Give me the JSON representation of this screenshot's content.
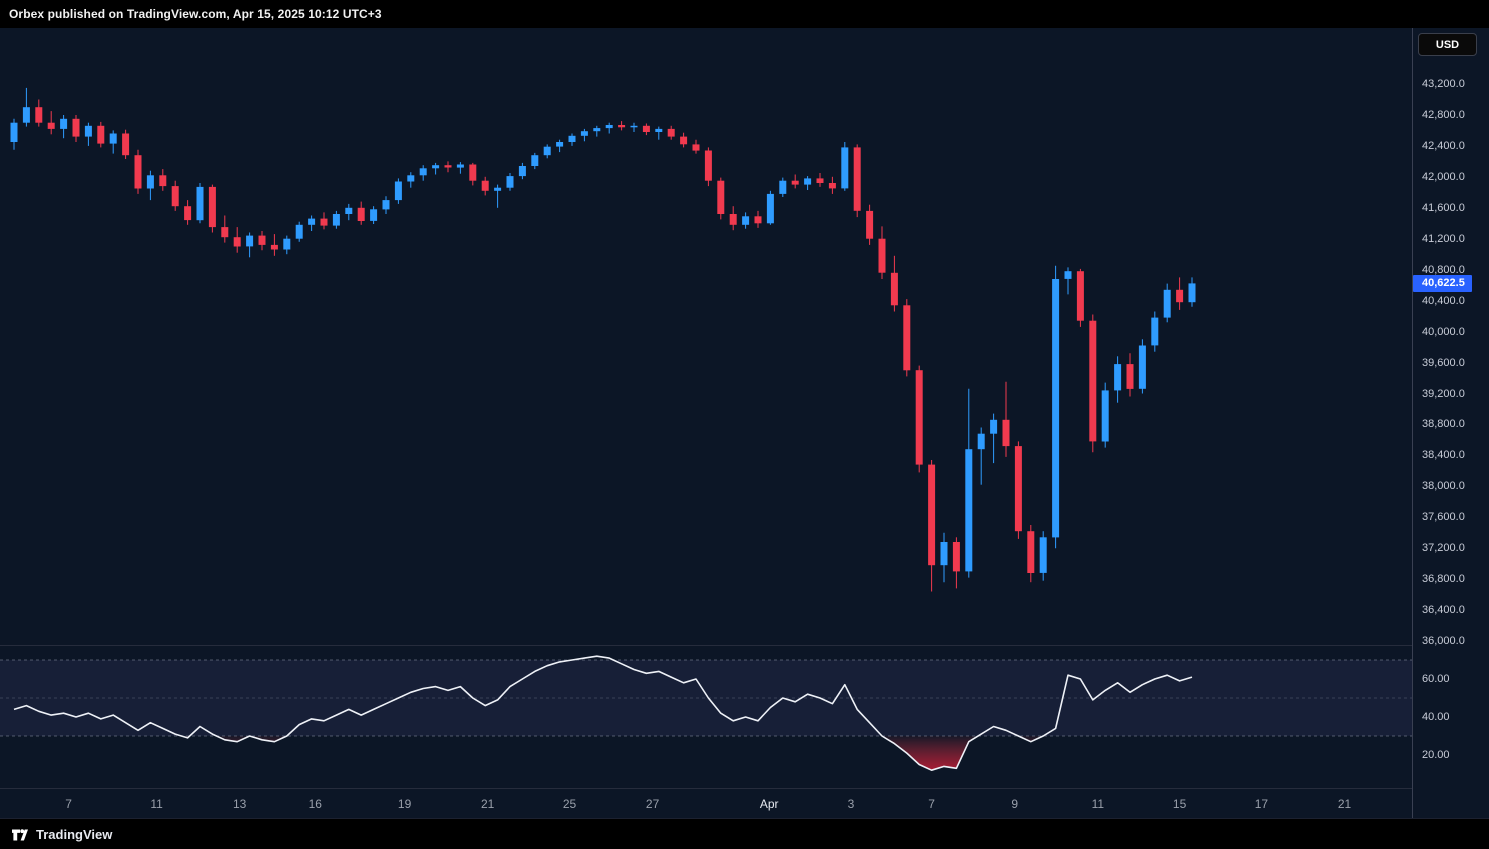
{
  "topbar": {
    "attribution": "Orbex published on TradingView.com, Apr 15, 2025 10:12 UTC+3"
  },
  "footer": {
    "brand": "TradingView"
  },
  "price_axis": {
    "currency_button": "USD",
    "last_price_label": "40,622.5",
    "last_price_value": 40622.5,
    "labels": [
      {
        "label": "43,200.0",
        "value": 43200
      },
      {
        "label": "42,800.0",
        "value": 42800
      },
      {
        "label": "42,400.0",
        "value": 42400
      },
      {
        "label": "42,000.0",
        "value": 42000
      },
      {
        "label": "41,600.0",
        "value": 41600
      },
      {
        "label": "41,200.0",
        "value": 41200
      },
      {
        "label": "40,800.0",
        "value": 40800
      },
      {
        "label": "40,400.0",
        "value": 40400
      },
      {
        "label": "40,000.0",
        "value": 40000
      },
      {
        "label": "39,600.0",
        "value": 39600
      },
      {
        "label": "39,200.0",
        "value": 39200
      },
      {
        "label": "38,800.0",
        "value": 38800
      },
      {
        "label": "38,400.0",
        "value": 38400
      },
      {
        "label": "38,000.0",
        "value": 38000
      },
      {
        "label": "37,600.0",
        "value": 37600
      },
      {
        "label": "37,200.0",
        "value": 37200
      },
      {
        "label": "36,800.0",
        "value": 36800
      },
      {
        "label": "36,400.0",
        "value": 36400
      },
      {
        "label": "36,000.0",
        "value": 36000
      }
    ]
  },
  "rsi_axis": {
    "labels": [
      {
        "label": "60.00",
        "value": 60
      },
      {
        "label": "40.00",
        "value": 40
      },
      {
        "label": "20.00",
        "value": 20
      }
    ]
  },
  "time_axis": {
    "labels": [
      {
        "label": "7",
        "i": 4.4
      },
      {
        "label": "11",
        "i": 11.5
      },
      {
        "label": "13",
        "i": 18.2
      },
      {
        "label": "16",
        "i": 24.3
      },
      {
        "label": "19",
        "i": 31.5
      },
      {
        "label": "21",
        "i": 38.2
      },
      {
        "label": "25",
        "i": 44.8
      },
      {
        "label": "27",
        "i": 51.5
      },
      {
        "label": "Apr",
        "i": 60.9,
        "major": true
      },
      {
        "label": "3",
        "i": 67.5
      },
      {
        "label": "7",
        "i": 74
      },
      {
        "label": "9",
        "i": 80.7
      },
      {
        "label": "11",
        "i": 87.4
      },
      {
        "label": "15",
        "i": 94
      },
      {
        "label": "17",
        "i": 100.6
      },
      {
        "label": "21",
        "i": 107.3
      }
    ]
  },
  "colors": {
    "background": "#0c1626",
    "candle_up": "#2f9cff",
    "candle_down": "#f13a4f",
    "rsi_line": "#eef1f7",
    "rsi_band_line": "#8b8fa3",
    "rsi_band_fill": "rgba(116,108,204,0.11)",
    "oversold_fill": "#c21834",
    "badge": "#2962ff",
    "axis_text": "#c9cdd8"
  },
  "chart_data": {
    "type": "candlestick",
    "currency": "USD",
    "last_price": 40622.5,
    "price_axis_ticks": [
      43200,
      42800,
      42400,
      42000,
      41600,
      41200,
      40800,
      40400,
      40000,
      39600,
      39200,
      38800,
      38400,
      38000,
      37600,
      37200,
      36800,
      36400,
      36000
    ],
    "ylim_price": [
      35950,
      43950
    ],
    "grid": false,
    "legend_position": "none",
    "ohlc": [
      [
        42450,
        42750,
        42350,
        42700
      ],
      [
        42700,
        43150,
        42650,
        42900
      ],
      [
        42900,
        43000,
        42650,
        42700
      ],
      [
        42700,
        42850,
        42550,
        42620
      ],
      [
        42620,
        42800,
        42500,
        42750
      ],
      [
        42750,
        42800,
        42450,
        42520
      ],
      [
        42520,
        42700,
        42400,
        42660
      ],
      [
        42660,
        42710,
        42380,
        42430
      ],
      [
        42430,
        42600,
        42300,
        42560
      ],
      [
        42560,
        42610,
        42230,
        42280
      ],
      [
        42280,
        42350,
        41780,
        41850
      ],
      [
        41850,
        42080,
        41700,
        42020
      ],
      [
        42020,
        42100,
        41820,
        41880
      ],
      [
        41880,
        41950,
        41560,
        41620
      ],
      [
        41620,
        41700,
        41380,
        41440
      ],
      [
        41440,
        41920,
        41400,
        41870
      ],
      [
        41870,
        41900,
        41280,
        41350
      ],
      [
        41350,
        41500,
        41150,
        41220
      ],
      [
        41220,
        41350,
        41020,
        41100
      ],
      [
        41100,
        41280,
        40960,
        41240
      ],
      [
        41240,
        41300,
        41050,
        41120
      ],
      [
        41120,
        41260,
        40980,
        41060
      ],
      [
        41060,
        41240,
        41000,
        41200
      ],
      [
        41200,
        41420,
        41160,
        41380
      ],
      [
        41380,
        41500,
        41300,
        41460
      ],
      [
        41460,
        41540,
        41320,
        41370
      ],
      [
        41370,
        41560,
        41330,
        41520
      ],
      [
        41520,
        41650,
        41440,
        41600
      ],
      [
        41600,
        41680,
        41380,
        41430
      ],
      [
        41430,
        41620,
        41390,
        41580
      ],
      [
        41580,
        41750,
        41520,
        41700
      ],
      [
        41700,
        41980,
        41650,
        41940
      ],
      [
        41940,
        42060,
        41860,
        42020
      ],
      [
        42020,
        42150,
        41950,
        42110
      ],
      [
        42110,
        42180,
        42030,
        42150
      ],
      [
        42150,
        42200,
        42060,
        42120
      ],
      [
        42120,
        42190,
        42040,
        42160
      ],
      [
        42160,
        42180,
        41890,
        41950
      ],
      [
        41950,
        42000,
        41760,
        41820
      ],
      [
        41820,
        41900,
        41600,
        41860
      ],
      [
        41860,
        42050,
        41820,
        42010
      ],
      [
        42010,
        42180,
        41970,
        42140
      ],
      [
        42140,
        42310,
        42100,
        42280
      ],
      [
        42280,
        42420,
        42240,
        42390
      ],
      [
        42390,
        42480,
        42320,
        42450
      ],
      [
        42450,
        42560,
        42400,
        42530
      ],
      [
        42530,
        42620,
        42460,
        42590
      ],
      [
        42590,
        42660,
        42520,
        42630
      ],
      [
        42630,
        42700,
        42560,
        42670
      ],
      [
        42670,
        42720,
        42600,
        42640
      ],
      [
        42640,
        42700,
        42580,
        42660
      ],
      [
        42660,
        42690,
        42540,
        42580
      ],
      [
        42580,
        42650,
        42480,
        42620
      ],
      [
        42620,
        42660,
        42480,
        42520
      ],
      [
        42520,
        42570,
        42380,
        42420
      ],
      [
        42420,
        42480,
        42300,
        42340
      ],
      [
        42340,
        42380,
        41880,
        41950
      ],
      [
        41950,
        41990,
        41450,
        41520
      ],
      [
        41520,
        41620,
        41310,
        41380
      ],
      [
        41380,
        41540,
        41330,
        41490
      ],
      [
        41490,
        41560,
        41340,
        41400
      ],
      [
        41400,
        41820,
        41380,
        41780
      ],
      [
        41780,
        41990,
        41740,
        41950
      ],
      [
        41950,
        42030,
        41850,
        41900
      ],
      [
        41900,
        42010,
        41830,
        41980
      ],
      [
        41980,
        42050,
        41870,
        41920
      ],
      [
        41920,
        42000,
        41780,
        41850
      ],
      [
        41850,
        42450,
        41820,
        42380
      ],
      [
        42380,
        42420,
        41480,
        41560
      ],
      [
        41560,
        41640,
        41120,
        41200
      ],
      [
        41200,
        41360,
        40680,
        40760
      ],
      [
        40760,
        40980,
        40260,
        40340
      ],
      [
        40340,
        40420,
        39420,
        39500
      ],
      [
        39500,
        39560,
        38180,
        38280
      ],
      [
        38280,
        38340,
        36640,
        36980
      ],
      [
        36980,
        37400,
        36760,
        37280
      ],
      [
        37280,
        37340,
        36680,
        36900
      ],
      [
        36900,
        39260,
        36820,
        38480
      ],
      [
        38480,
        38760,
        38020,
        38680
      ],
      [
        38680,
        38940,
        38300,
        38860
      ],
      [
        38860,
        39350,
        38380,
        38520
      ],
      [
        38520,
        38580,
        37320,
        37420
      ],
      [
        37420,
        37500,
        36760,
        36880
      ],
      [
        36880,
        37420,
        36780,
        37340
      ],
      [
        37340,
        40850,
        37200,
        40680
      ],
      [
        40680,
        40830,
        40480,
        40780
      ],
      [
        40780,
        40810,
        40060,
        40140
      ],
      [
        40140,
        40220,
        38440,
        38580
      ],
      [
        38580,
        39340,
        38500,
        39240
      ],
      [
        39240,
        39680,
        39080,
        39580
      ],
      [
        39580,
        39720,
        39160,
        39260
      ],
      [
        39260,
        39900,
        39200,
        39820
      ],
      [
        39820,
        40260,
        39740,
        40180
      ],
      [
        40180,
        40620,
        40120,
        40540
      ],
      [
        40540,
        40700,
        40280,
        40380
      ],
      [
        40380,
        40700,
        40320,
        40622.5
      ]
    ],
    "rsi": {
      "axis_ticks": [
        60,
        40,
        20
      ],
      "bands": [
        70,
        50,
        30
      ],
      "ylim": [
        2.5,
        78
      ],
      "values": [
        44,
        46,
        43,
        41,
        42,
        40,
        42,
        39,
        41,
        37,
        33,
        37,
        34,
        31,
        29,
        35,
        31,
        28,
        27,
        30,
        28,
        27,
        30,
        36,
        39,
        38,
        41,
        44,
        41,
        44,
        47,
        50,
        53,
        55,
        56,
        54,
        56,
        50,
        46,
        49,
        56,
        60,
        64,
        67,
        69,
        70,
        71,
        72,
        71,
        68,
        65,
        63,
        64,
        61,
        58,
        60,
        50,
        42,
        38,
        40,
        38,
        45,
        50,
        48,
        52,
        50,
        47,
        57,
        44,
        37,
        30,
        26,
        21,
        15,
        12,
        14,
        13,
        27,
        31,
        35,
        33,
        30,
        27,
        30,
        34,
        62,
        60,
        49,
        54,
        58,
        53,
        57,
        60,
        62,
        59,
        61
      ]
    }
  }
}
